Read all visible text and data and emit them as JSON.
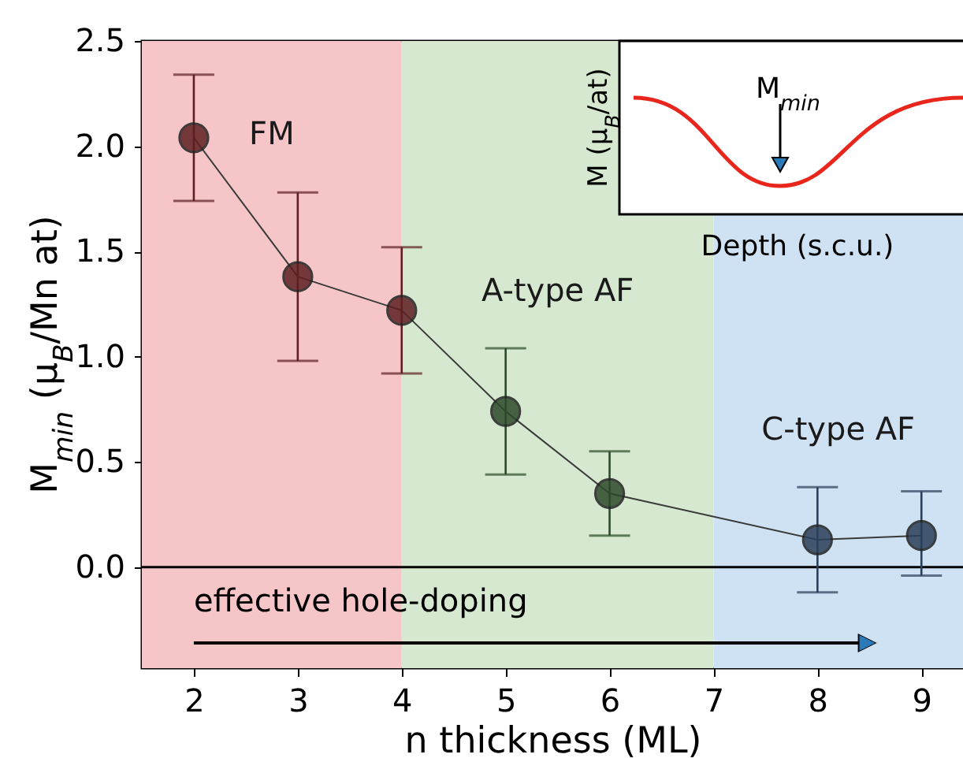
{
  "chart_data": {
    "type": "line",
    "xlabel": "n thickness (ML)",
    "ylabel": "M$_{min}$ (μ$_{B}$/Mn at)",
    "x": [
      2,
      3,
      4,
      5,
      6,
      8,
      9
    ],
    "series": [
      {
        "color": "#3a3a3a",
        "colors": [
          "#5e1f22",
          "#5e1f22",
          "#5e1f22",
          "#2c4a2a",
          "#2c4a2a",
          "#2a3f58",
          "#2a3f58"
        ],
        "values": [
          2.04,
          1.38,
          1.22,
          0.74,
          0.35,
          0.13,
          0.15
        ],
        "errors": [
          [
            1.74,
            2.34
          ],
          [
            0.98,
            1.78
          ],
          [
            0.92,
            1.52
          ],
          [
            0.44,
            1.04
          ],
          [
            0.15,
            0.55
          ],
          [
            -0.12,
            0.38
          ],
          [
            -0.04,
            0.36
          ]
        ]
      }
    ],
    "xlim": [
      1.5,
      9.4
    ],
    "ylim": [
      -0.48,
      2.5
    ],
    "xticks": [
      2,
      3,
      4,
      5,
      6,
      7,
      8,
      9
    ],
    "yticks": [
      {
        "value": 0,
        "label": "0.0"
      },
      {
        "value": 0.5,
        "label": "0.5"
      },
      {
        "value": 1,
        "label": "1.0"
      },
      {
        "value": 1.5,
        "label": "1.5"
      },
      {
        "value": 2,
        "label": "2.0"
      },
      {
        "value": 2.5,
        "label": "2.5"
      }
    ],
    "grid": false,
    "marker": "circle",
    "line_style": "solid",
    "ref_lines": [
      {
        "axis": "y",
        "value": 0,
        "color": "#000000"
      }
    ],
    "bands": [
      {
        "axis": "x",
        "from": 1.5,
        "to": 4,
        "label": "FM",
        "color": "#f5c5c8"
      },
      {
        "axis": "x",
        "from": 4,
        "to": 7,
        "label": "A-type AF",
        "color": "#d6e9d0"
      },
      {
        "axis": "x",
        "from": 7,
        "to": 9.4,
        "label": "C-type AF",
        "color": "#cfe2f3"
      }
    ],
    "annotations": [
      "effective hole-doping",
      "M$_{min}$",
      "M (μ$_{B}$/at)",
      "Depth (s.c.u.)"
    ]
  }
}
